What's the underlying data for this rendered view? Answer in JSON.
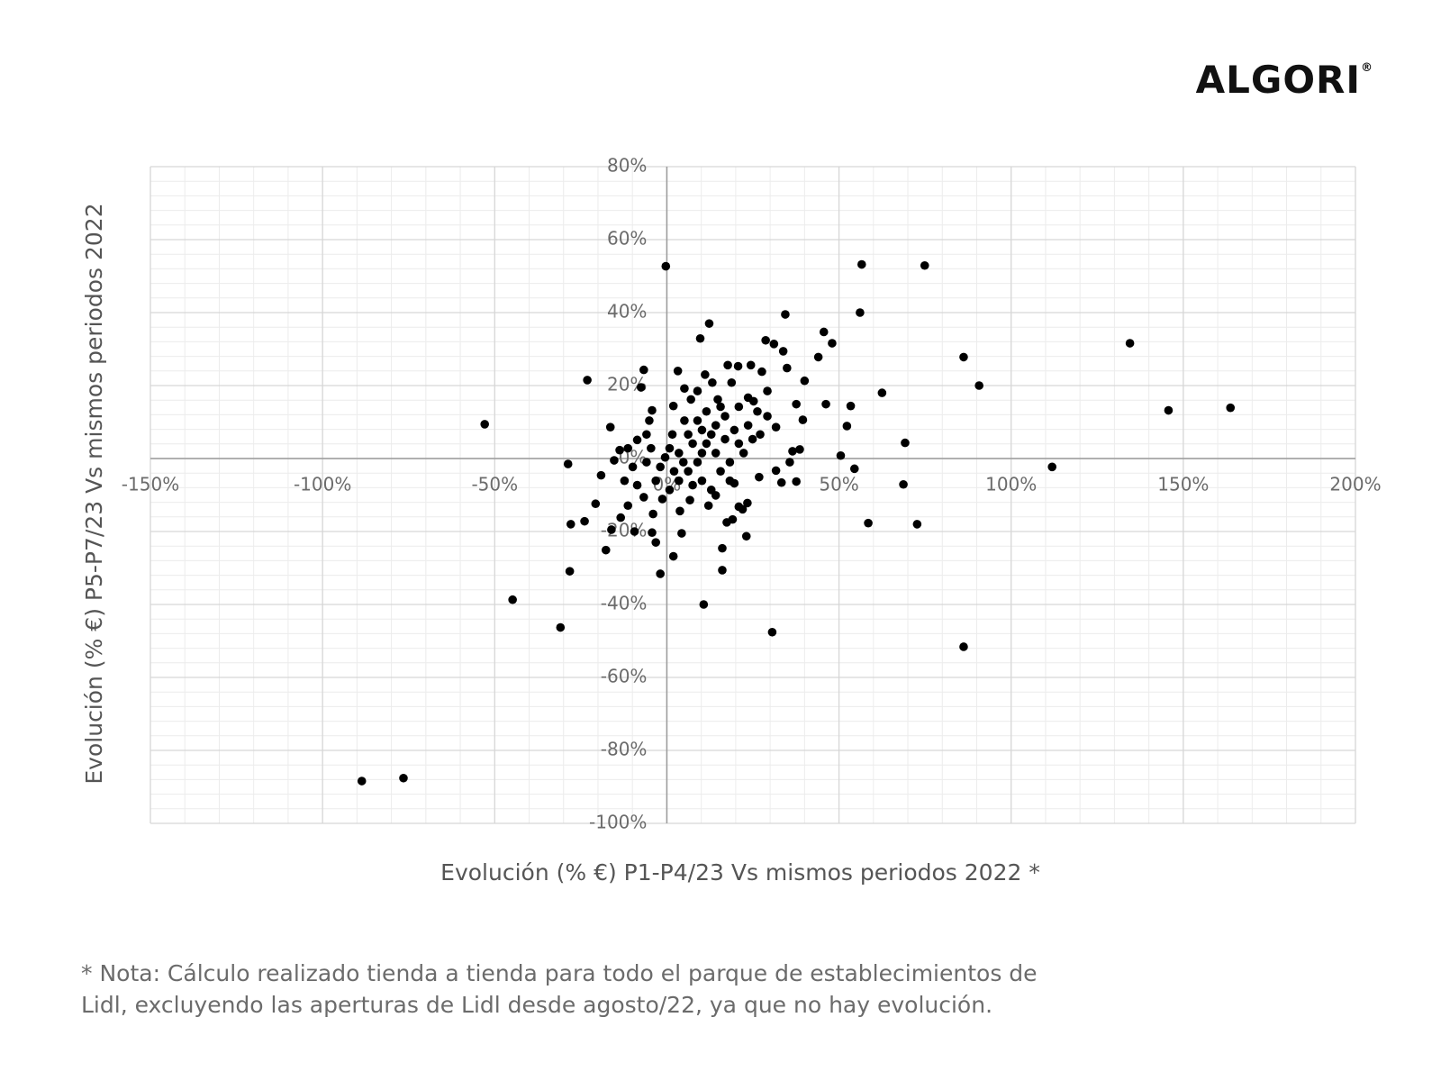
{
  "logo": "ALGORI",
  "logo_mark": "®",
  "note": [
    "* Nota: Cálculo realizado tienda a tienda para todo el parque de establecimientos de",
    "Lidl, excluyendo  las aperturas de Lidl desde agosto/22, ya que no hay evolución."
  ],
  "chart_data": {
    "type": "scatter",
    "x_label": "Evolución (% €)  P1-P4/23 Vs mismos periodos 2022 *",
    "y_label": "Evolución (% €)  P5-P7/23 Vs mismos periodos 2022",
    "color": "#000000",
    "grid": true,
    "xlim": [
      -150,
      200
    ],
    "xticks": [
      {
        "value": -150,
        "label": "-150%"
      },
      {
        "value": -100,
        "label": "-100%"
      },
      {
        "value": -50,
        "label": "-50%"
      },
      {
        "value": 0,
        "label": "0%"
      },
      {
        "value": 50,
        "label": "50%"
      },
      {
        "value": 100,
        "label": "100%"
      },
      {
        "value": 150,
        "label": "150%"
      },
      {
        "value": 200,
        "label": "200%"
      }
    ],
    "ylim": [
      -100,
      80
    ],
    "yticks": [
      {
        "value": 80,
        "label": "80%"
      },
      {
        "value": 60,
        "label": "60%"
      },
      {
        "value": 40,
        "label": "40%"
      },
      {
        "value": 20,
        "label": "20%"
      },
      {
        "value": 0,
        "label": "0%"
      },
      {
        "value": -20,
        "label": "-20%"
      },
      {
        "value": -40,
        "label": "-40%"
      },
      {
        "value": -60,
        "label": "-60%"
      },
      {
        "value": -80,
        "label": "-80%"
      },
      {
        "value": -100,
        "label": "-100%"
      }
    ],
    "x": [
      -0.3,
      56.6,
      74.9,
      56.1,
      34.4,
      12.3,
      45.6,
      48,
      134.5,
      86.2,
      44,
      90.7,
      -23.1,
      -6.7,
      62.5,
      145.7,
      163.7,
      53.4,
      46.2,
      -52.9,
      52.3,
      69.2,
      50.5,
      111.9,
      -28.7,
      54.5,
      68.7,
      58.5,
      72.7,
      -27.9,
      -23.9,
      -17.7,
      -28.2,
      -1.9,
      1.9,
      16.1,
      16.1,
      23.1,
      -44.8,
      10.7,
      -30.9,
      30.6,
      86.2,
      -88.6,
      -76.5,
      -19.1,
      -16.4,
      -20.7,
      -7.5,
      3.2,
      9.7,
      28.7,
      31.1,
      33.8,
      40,
      34.9,
      37.6,
      39.5,
      38.6,
      36.5,
      35.7,
      37.6,
      33.3,
      31.7,
      26.8,
      23.4,
      19.6,
      17.4,
      19.1,
      4.3,
      -4.3,
      -3.2,
      -9.4,
      -16.1,
      -13.4,
      -11.3,
      -4,
      3.8,
      6.7,
      12.1,
      14.2,
      20.9,
      22,
      -5.9,
      -15.3,
      -13.7,
      -11.3,
      -8.6,
      -5.1,
      -4.3,
      1.9,
      5.1,
      8.9,
      11.1,
      17.7,
      20.7,
      24.4,
      27.6,
      29.2,
      25.2,
      29.2,
      31.7,
      27.1,
      13.2,
      14.8,
      18.8,
      7,
      5.1,
      1.6,
      -3.2,
      0.8,
      -8.6,
      -6.7,
      -1.3,
      10.2,
      15.6,
      18.3,
      20.9,
      23.6,
      20.9,
      16.9,
      12.9,
      10.2,
      7.5,
      4.8,
      3.5,
      6.2,
      8.9,
      11.5,
      14.2,
      14.2,
      10.2,
      -0.5,
      -1.9,
      2.1,
      0.8,
      16.9,
      19.6,
      22.3,
      24.9,
      18.3,
      12.9,
      7.5,
      3.5,
      6.2,
      8.9,
      11.5,
      15.6,
      23.6,
      26.3,
      -5.9,
      -4.6,
      -9.9,
      -12.3
    ],
    "values": [
      52.7,
      53.2,
      52.9,
      40,
      39.5,
      37,
      34.7,
      31.6,
      31.6,
      27.8,
      27.8,
      20,
      21.5,
      24.3,
      18,
      13.2,
      13.9,
      14.4,
      14.9,
      9.4,
      8.9,
      4.3,
      0.8,
      -2.3,
      -1.5,
      -2.8,
      -7.1,
      -17.7,
      -18,
      -18,
      -17.2,
      -25.1,
      -30.9,
      -31.6,
      -26.8,
      -24.6,
      -30.6,
      -21.3,
      -38.7,
      -40,
      -46.3,
      -47.6,
      -51.6,
      -88.4,
      -87.6,
      -4.6,
      8.6,
      -12.4,
      19.5,
      24,
      32.9,
      32.4,
      31.4,
      29.4,
      21.3,
      24.8,
      14.9,
      10.6,
      2.5,
      2,
      -1,
      -6.3,
      -6.6,
      -3.3,
      -5.1,
      -12.2,
      -6.8,
      -17.5,
      -16.7,
      -20.5,
      -20.3,
      -23,
      -20,
      -19.5,
      -16.2,
      -12.9,
      -15.2,
      -14.4,
      -11.4,
      -12.9,
      -10.1,
      -13.2,
      -13.9,
      -1,
      -0.5,
      2.3,
      2.8,
      5.1,
      10.4,
      13.2,
      14.4,
      19.2,
      18.5,
      23,
      25.6,
      25.3,
      25.6,
      23.8,
      18.5,
      15.7,
      11.6,
      8.6,
      6.6,
      20.8,
      16.2,
      20.8,
      16.2,
      10.4,
      6.6,
      -6.1,
      -8.6,
      -7.3,
      -10.6,
      -11.1,
      -6.1,
      -3.5,
      -1,
      4.1,
      9.1,
      14.2,
      11.6,
      6.6,
      1.5,
      4.1,
      -1,
      1.5,
      -3.5,
      -1,
      4.1,
      9.1,
      1.5,
      7.8,
      0.3,
      -2.3,
      -3.5,
      2.8,
      5.3,
      7.8,
      1.5,
      5.3,
      -6.1,
      -8.6,
      -7.3,
      -6.1,
      6.6,
      10.4,
      12.9,
      14.2,
      16.7,
      12.9,
      6.6,
      2.8,
      -2.3,
      -6.1
    ]
  }
}
